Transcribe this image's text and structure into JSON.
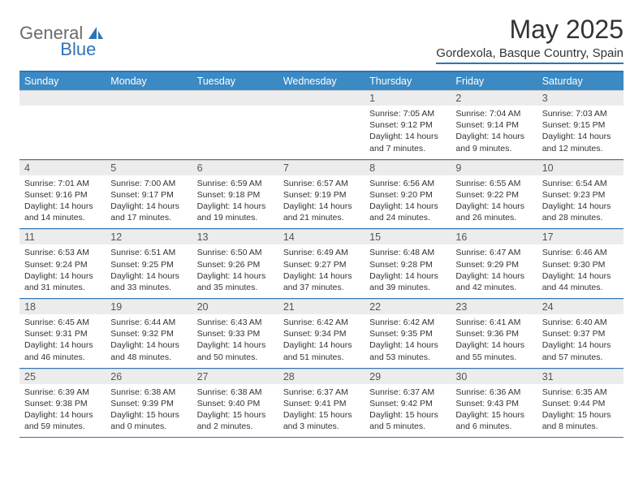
{
  "brand": {
    "part1": "General",
    "part2": "Blue"
  },
  "title": "May 2025",
  "location": "Gordexola, Basque Country, Spain",
  "colors": {
    "accent": "#3b8ac4",
    "rule": "#2f74b5",
    "numrow_bg": "#ececec",
    "text": "#333333",
    "logo_gray": "#6b6b6b"
  },
  "day_labels": [
    "Sunday",
    "Monday",
    "Tuesday",
    "Wednesday",
    "Thursday",
    "Friday",
    "Saturday"
  ],
  "weeks": [
    [
      {
        "n": "",
        "d": []
      },
      {
        "n": "",
        "d": []
      },
      {
        "n": "",
        "d": []
      },
      {
        "n": "",
        "d": []
      },
      {
        "n": "1",
        "d": [
          "Sunrise: 7:05 AM",
          "Sunset: 9:12 PM",
          "Daylight: 14 hours",
          "and 7 minutes."
        ]
      },
      {
        "n": "2",
        "d": [
          "Sunrise: 7:04 AM",
          "Sunset: 9:14 PM",
          "Daylight: 14 hours",
          "and 9 minutes."
        ]
      },
      {
        "n": "3",
        "d": [
          "Sunrise: 7:03 AM",
          "Sunset: 9:15 PM",
          "Daylight: 14 hours",
          "and 12 minutes."
        ]
      }
    ],
    [
      {
        "n": "4",
        "d": [
          "Sunrise: 7:01 AM",
          "Sunset: 9:16 PM",
          "Daylight: 14 hours",
          "and 14 minutes."
        ]
      },
      {
        "n": "5",
        "d": [
          "Sunrise: 7:00 AM",
          "Sunset: 9:17 PM",
          "Daylight: 14 hours",
          "and 17 minutes."
        ]
      },
      {
        "n": "6",
        "d": [
          "Sunrise: 6:59 AM",
          "Sunset: 9:18 PM",
          "Daylight: 14 hours",
          "and 19 minutes."
        ]
      },
      {
        "n": "7",
        "d": [
          "Sunrise: 6:57 AM",
          "Sunset: 9:19 PM",
          "Daylight: 14 hours",
          "and 21 minutes."
        ]
      },
      {
        "n": "8",
        "d": [
          "Sunrise: 6:56 AM",
          "Sunset: 9:20 PM",
          "Daylight: 14 hours",
          "and 24 minutes."
        ]
      },
      {
        "n": "9",
        "d": [
          "Sunrise: 6:55 AM",
          "Sunset: 9:22 PM",
          "Daylight: 14 hours",
          "and 26 minutes."
        ]
      },
      {
        "n": "10",
        "d": [
          "Sunrise: 6:54 AM",
          "Sunset: 9:23 PM",
          "Daylight: 14 hours",
          "and 28 minutes."
        ]
      }
    ],
    [
      {
        "n": "11",
        "d": [
          "Sunrise: 6:53 AM",
          "Sunset: 9:24 PM",
          "Daylight: 14 hours",
          "and 31 minutes."
        ]
      },
      {
        "n": "12",
        "d": [
          "Sunrise: 6:51 AM",
          "Sunset: 9:25 PM",
          "Daylight: 14 hours",
          "and 33 minutes."
        ]
      },
      {
        "n": "13",
        "d": [
          "Sunrise: 6:50 AM",
          "Sunset: 9:26 PM",
          "Daylight: 14 hours",
          "and 35 minutes."
        ]
      },
      {
        "n": "14",
        "d": [
          "Sunrise: 6:49 AM",
          "Sunset: 9:27 PM",
          "Daylight: 14 hours",
          "and 37 minutes."
        ]
      },
      {
        "n": "15",
        "d": [
          "Sunrise: 6:48 AM",
          "Sunset: 9:28 PM",
          "Daylight: 14 hours",
          "and 39 minutes."
        ]
      },
      {
        "n": "16",
        "d": [
          "Sunrise: 6:47 AM",
          "Sunset: 9:29 PM",
          "Daylight: 14 hours",
          "and 42 minutes."
        ]
      },
      {
        "n": "17",
        "d": [
          "Sunrise: 6:46 AM",
          "Sunset: 9:30 PM",
          "Daylight: 14 hours",
          "and 44 minutes."
        ]
      }
    ],
    [
      {
        "n": "18",
        "d": [
          "Sunrise: 6:45 AM",
          "Sunset: 9:31 PM",
          "Daylight: 14 hours",
          "and 46 minutes."
        ]
      },
      {
        "n": "19",
        "d": [
          "Sunrise: 6:44 AM",
          "Sunset: 9:32 PM",
          "Daylight: 14 hours",
          "and 48 minutes."
        ]
      },
      {
        "n": "20",
        "d": [
          "Sunrise: 6:43 AM",
          "Sunset: 9:33 PM",
          "Daylight: 14 hours",
          "and 50 minutes."
        ]
      },
      {
        "n": "21",
        "d": [
          "Sunrise: 6:42 AM",
          "Sunset: 9:34 PM",
          "Daylight: 14 hours",
          "and 51 minutes."
        ]
      },
      {
        "n": "22",
        "d": [
          "Sunrise: 6:42 AM",
          "Sunset: 9:35 PM",
          "Daylight: 14 hours",
          "and 53 minutes."
        ]
      },
      {
        "n": "23",
        "d": [
          "Sunrise: 6:41 AM",
          "Sunset: 9:36 PM",
          "Daylight: 14 hours",
          "and 55 minutes."
        ]
      },
      {
        "n": "24",
        "d": [
          "Sunrise: 6:40 AM",
          "Sunset: 9:37 PM",
          "Daylight: 14 hours",
          "and 57 minutes."
        ]
      }
    ],
    [
      {
        "n": "25",
        "d": [
          "Sunrise: 6:39 AM",
          "Sunset: 9:38 PM",
          "Daylight: 14 hours",
          "and 59 minutes."
        ]
      },
      {
        "n": "26",
        "d": [
          "Sunrise: 6:38 AM",
          "Sunset: 9:39 PM",
          "Daylight: 15 hours",
          "and 0 minutes."
        ]
      },
      {
        "n": "27",
        "d": [
          "Sunrise: 6:38 AM",
          "Sunset: 9:40 PM",
          "Daylight: 15 hours",
          "and 2 minutes."
        ]
      },
      {
        "n": "28",
        "d": [
          "Sunrise: 6:37 AM",
          "Sunset: 9:41 PM",
          "Daylight: 15 hours",
          "and 3 minutes."
        ]
      },
      {
        "n": "29",
        "d": [
          "Sunrise: 6:37 AM",
          "Sunset: 9:42 PM",
          "Daylight: 15 hours",
          "and 5 minutes."
        ]
      },
      {
        "n": "30",
        "d": [
          "Sunrise: 6:36 AM",
          "Sunset: 9:43 PM",
          "Daylight: 15 hours",
          "and 6 minutes."
        ]
      },
      {
        "n": "31",
        "d": [
          "Sunrise: 6:35 AM",
          "Sunset: 9:44 PM",
          "Daylight: 15 hours",
          "and 8 minutes."
        ]
      }
    ]
  ]
}
